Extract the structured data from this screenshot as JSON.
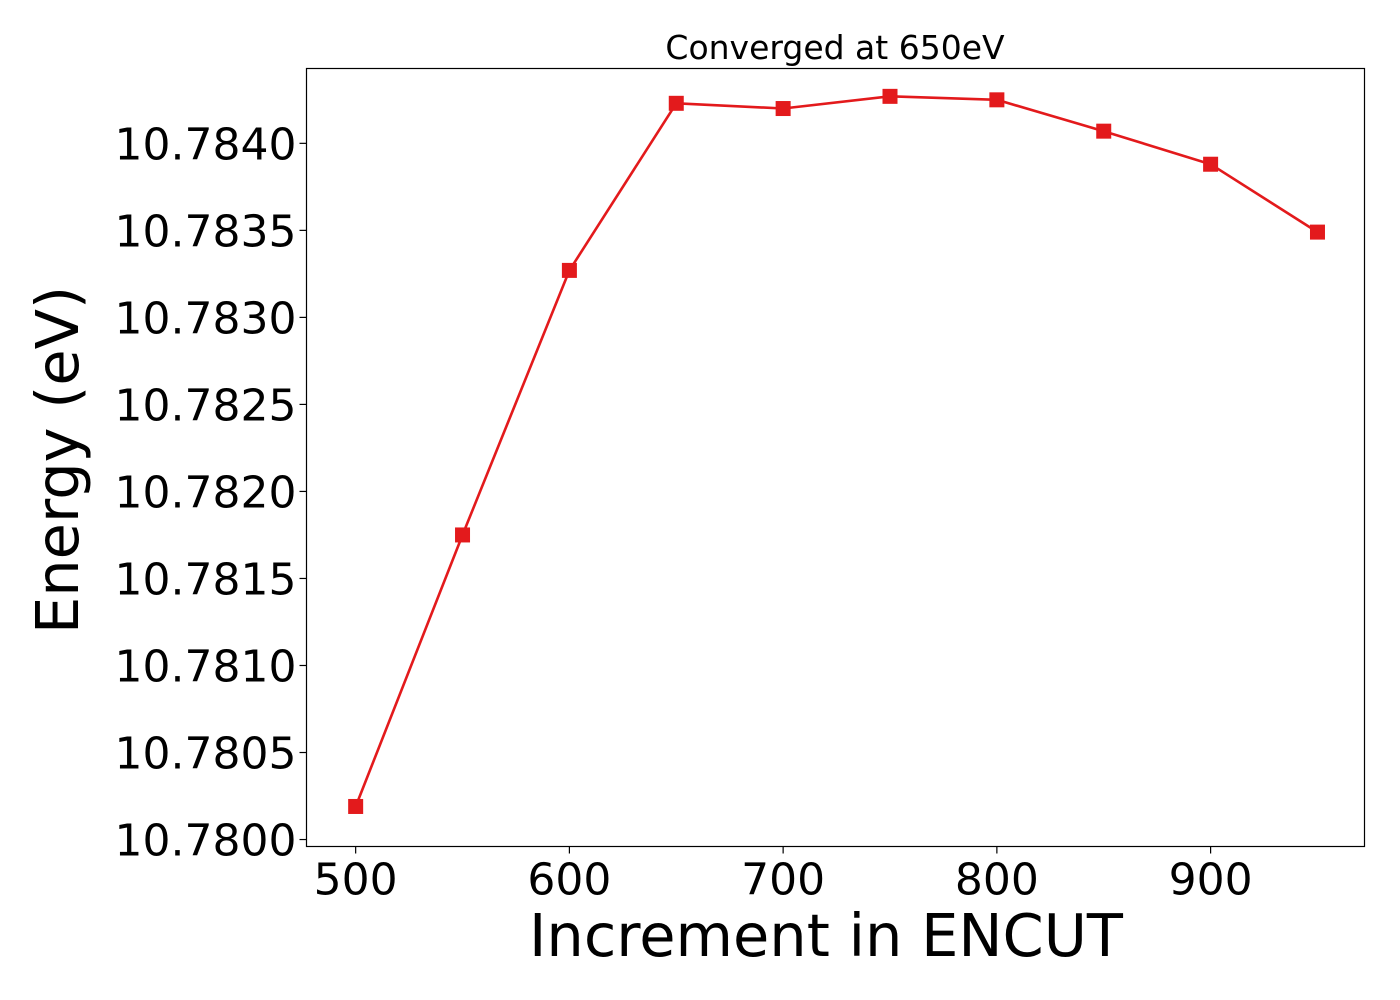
{
  "chart_data": {
    "type": "line",
    "title": "Converged at 650eV",
    "xlabel": "Increment in ENCUT",
    "ylabel": "Energy (eV)",
    "x": [
      500,
      550,
      600,
      650,
      700,
      750,
      800,
      850,
      900,
      950
    ],
    "series": [
      {
        "values": [
          10.78019,
          10.78175,
          10.78327,
          10.78423,
          10.7842,
          10.78427,
          10.78425,
          10.78407,
          10.78388,
          10.78349
        ],
        "color": "#e31a1c",
        "marker": "square"
      }
    ],
    "xlim": [
      477,
      972
    ],
    "ylim": [
      10.77996,
      10.78443
    ],
    "xticks": [
      500,
      600,
      700,
      800,
      900
    ],
    "xtick_labels": [
      "500",
      "600",
      "700",
      "800",
      "900"
    ],
    "yticks": [
      10.78,
      10.7805,
      10.781,
      10.7815,
      10.782,
      10.7825,
      10.783,
      10.7835,
      10.784
    ],
    "ytick_labels": [
      "10.7800",
      "10.7805",
      "10.7810",
      "10.7815",
      "10.7820",
      "10.7825",
      "10.7830",
      "10.7835",
      "10.7840"
    ],
    "grid": false,
    "legend": "none"
  }
}
